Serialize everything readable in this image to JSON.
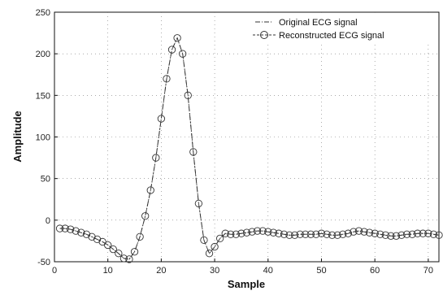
{
  "chart_data": {
    "type": "line",
    "xlabel": "Sample",
    "ylabel": "Amplitude",
    "xlim": [
      0,
      72
    ],
    "ylim": [
      -50,
      250
    ],
    "xticks": [
      0,
      10,
      20,
      30,
      40,
      50,
      60,
      70
    ],
    "yticks": [
      -50,
      0,
      50,
      100,
      150,
      200,
      250
    ],
    "xtick_labels": [
      "0",
      "10",
      "20",
      "30",
      "40",
      "50",
      "60",
      "70"
    ],
    "ytick_labels": [
      "-50",
      "0",
      "50",
      "100",
      "150",
      "200",
      "250"
    ],
    "grid": true,
    "legend_position": "top-right",
    "x": [
      1,
      2,
      3,
      4,
      5,
      6,
      7,
      8,
      9,
      10,
      11,
      12,
      13,
      14,
      15,
      16,
      17,
      18,
      19,
      20,
      21,
      22,
      23,
      24,
      25,
      26,
      27,
      28,
      29,
      30,
      31,
      32,
      33,
      34,
      35,
      36,
      37,
      38,
      39,
      40,
      41,
      42,
      43,
      44,
      45,
      46,
      47,
      48,
      49,
      50,
      51,
      52,
      53,
      54,
      55,
      56,
      57,
      58,
      59,
      60,
      61,
      62,
      63,
      64,
      65,
      66,
      67,
      68,
      69,
      70,
      71,
      72
    ],
    "series": [
      {
        "name": "Original ECG signal",
        "style": "dash-dot",
        "color": "#333333",
        "values": [
          -10,
          -10,
          -11,
          -13,
          -15,
          -17,
          -20,
          -23,
          -26,
          -30,
          -35,
          -40,
          -46,
          -47,
          -38,
          -20,
          5,
          36,
          75,
          122,
          170,
          205,
          219,
          200,
          150,
          82,
          20,
          -24,
          -40,
          -32,
          -22,
          -16,
          -17,
          -17,
          -16,
          -15,
          -14,
          -13,
          -13,
          -14,
          -15,
          -16,
          -17,
          -18,
          -18,
          -17,
          -17,
          -17,
          -17,
          -16,
          -17,
          -18,
          -18,
          -17,
          -16,
          -14,
          -13,
          -14,
          -15,
          -16,
          -17,
          -18,
          -19,
          -19,
          -18,
          -17,
          -17,
          -16,
          -16,
          -16,
          -17,
          -18
        ]
      },
      {
        "name": "Reconstructed ECG signal",
        "style": "circle-markers",
        "color": "#333333",
        "values": [
          -10,
          -10,
          -11,
          -13,
          -15,
          -17,
          -20,
          -23,
          -26,
          -30,
          -35,
          -40,
          -46,
          -47,
          -38,
          -20,
          5,
          36,
          75,
          122,
          170,
          205,
          219,
          200,
          150,
          82,
          20,
          -24,
          -40,
          -32,
          -22,
          -16,
          -17,
          -17,
          -16,
          -15,
          -14,
          -13,
          -13,
          -14,
          -15,
          -16,
          -17,
          -18,
          -18,
          -17,
          -17,
          -17,
          -17,
          -16,
          -17,
          -18,
          -18,
          -17,
          -16,
          -14,
          -13,
          -14,
          -15,
          -16,
          -17,
          -18,
          -19,
          -19,
          -18,
          -17,
          -17,
          -16,
          -16,
          -16,
          -17,
          -18
        ]
      }
    ]
  }
}
